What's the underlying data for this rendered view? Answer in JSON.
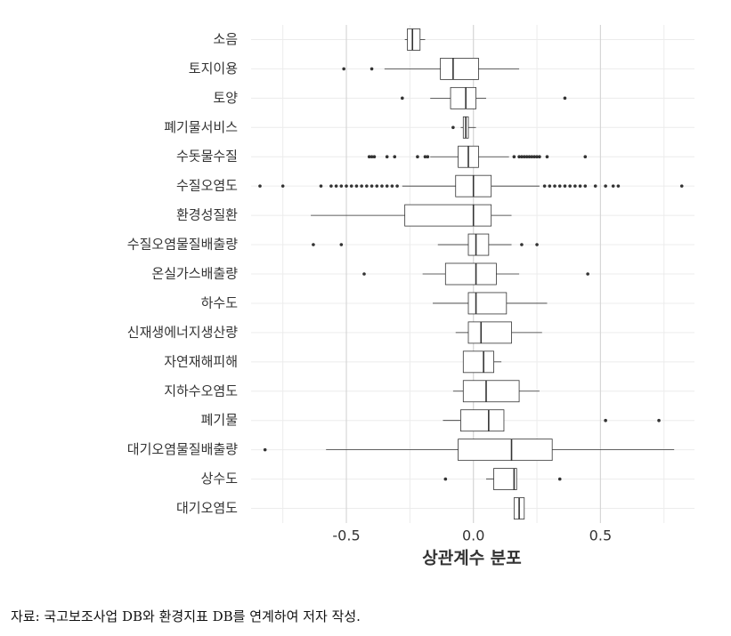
{
  "chart_data": {
    "type": "boxplot",
    "orientation": "horizontal",
    "x_label": "상관계수 분포",
    "xlim": [
      -0.875,
      0.87
    ],
    "xticks": [
      -0.5,
      {
        "value": 0,
        "label": "0.0"
      },
      0.5
    ],
    "xminor": [
      -0.75,
      -0.25,
      0.25,
      0.75
    ],
    "grid": true,
    "color": "#333333",
    "categories": [
      "소음",
      "토지이용",
      "토양",
      "폐기물서비스",
      "수돗물수질",
      "수질오염도",
      "환경성질환",
      "수질오염물질배출량",
      "온실가스배출량",
      "하수도",
      "신재생에너지생산량",
      "자연재해피해",
      "지하수오염도",
      "폐기물",
      "대기오염물질배출량",
      "상수도",
      "대기오염도"
    ],
    "boxes": [
      {
        "low": -0.27,
        "q1": -0.26,
        "median": -0.24,
        "q3": -0.21,
        "high": -0.19,
        "outliers": []
      },
      {
        "low": -0.35,
        "q1": -0.13,
        "median": -0.08,
        "q3": 0.02,
        "high": 0.18,
        "outliers": [
          -0.51,
          -0.4
        ]
      },
      {
        "low": -0.17,
        "q1": -0.09,
        "median": -0.03,
        "q3": 0.01,
        "high": 0.05,
        "outliers": [
          -0.28,
          0.36
        ]
      },
      {
        "low": -0.05,
        "q1": -0.04,
        "median": -0.03,
        "q3": -0.02,
        "high": 0.01,
        "outliers": [
          -0.08
        ]
      },
      {
        "low": -0.17,
        "q1": -0.06,
        "median": -0.02,
        "q3": 0.02,
        "high": 0.14,
        "outliers": [
          -0.41,
          -0.4,
          -0.39,
          -0.34,
          -0.31,
          -0.22,
          -0.19,
          -0.18,
          0.16,
          0.18,
          0.19,
          0.2,
          0.21,
          0.22,
          0.23,
          0.24,
          0.25,
          0.26,
          0.29,
          0.44
        ]
      },
      {
        "low": -0.28,
        "q1": -0.07,
        "median": 0.0,
        "q3": 0.07,
        "high": 0.26,
        "outliers": [
          -0.84,
          -0.75,
          -0.6,
          -0.56,
          -0.54,
          -0.52,
          -0.5,
          -0.48,
          -0.46,
          -0.44,
          -0.42,
          -0.4,
          -0.38,
          -0.36,
          -0.34,
          -0.32,
          -0.3,
          0.28,
          0.3,
          0.32,
          0.34,
          0.36,
          0.38,
          0.4,
          0.42,
          0.44,
          0.48,
          0.52,
          0.55,
          0.57,
          0.82
        ]
      },
      {
        "low": -0.64,
        "q1": -0.27,
        "median": 0.0,
        "q3": 0.07,
        "high": 0.15,
        "outliers": []
      },
      {
        "low": -0.14,
        "q1": -0.02,
        "median": 0.01,
        "q3": 0.06,
        "high": 0.15,
        "outliers": [
          -0.63,
          -0.52,
          0.19,
          0.25
        ]
      },
      {
        "low": -0.2,
        "q1": -0.11,
        "median": 0.01,
        "q3": 0.09,
        "high": 0.18,
        "outliers": [
          -0.43,
          0.45
        ]
      },
      {
        "low": -0.16,
        "q1": -0.02,
        "median": 0.01,
        "q3": 0.13,
        "high": 0.29,
        "outliers": []
      },
      {
        "low": -0.07,
        "q1": -0.02,
        "median": 0.03,
        "q3": 0.15,
        "high": 0.27,
        "outliers": []
      },
      {
        "low": -0.04,
        "q1": -0.04,
        "median": 0.04,
        "q3": 0.08,
        "high": 0.11,
        "outliers": []
      },
      {
        "low": -0.08,
        "q1": -0.04,
        "median": 0.05,
        "q3": 0.18,
        "high": 0.26,
        "outliers": []
      },
      {
        "low": -0.12,
        "q1": -0.05,
        "median": 0.06,
        "q3": 0.12,
        "high": 0.12,
        "outliers": [
          0.52,
          0.73
        ]
      },
      {
        "low": -0.58,
        "q1": -0.06,
        "median": 0.15,
        "q3": 0.31,
        "high": 0.79,
        "outliers": [
          -0.82
        ]
      },
      {
        "low": 0.05,
        "q1": 0.08,
        "median": 0.16,
        "q3": 0.17,
        "high": 0.17,
        "outliers": [
          -0.11,
          0.34
        ]
      },
      {
        "low": 0.16,
        "q1": 0.16,
        "median": 0.18,
        "q3": 0.2,
        "high": 0.2,
        "outliers": []
      }
    ]
  },
  "source_note": "자료: 국고보조사업 DB와 환경지표 DB를 연계하여 저자 작성."
}
